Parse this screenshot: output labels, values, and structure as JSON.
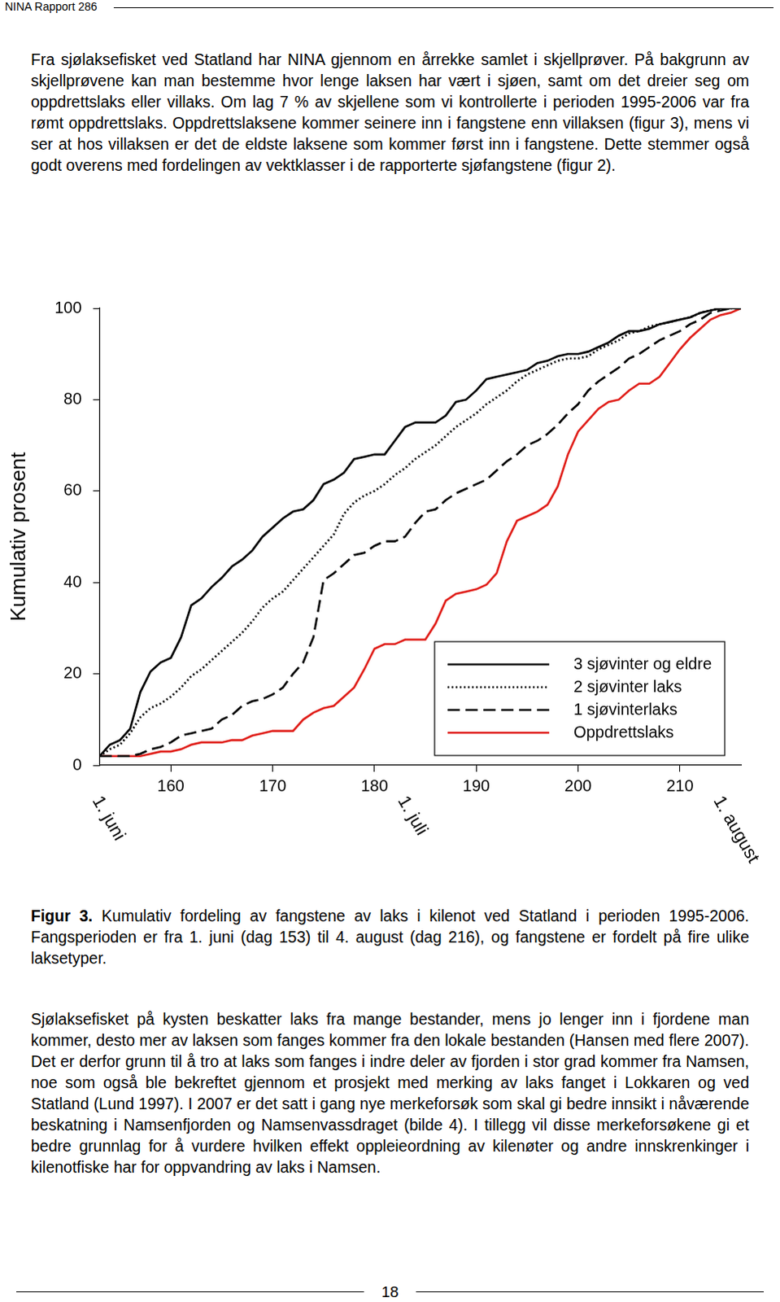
{
  "header": "NINA Rapport 286",
  "paragraphs_before": [
    "Fra sjølaksefisket ved Statland har NINA gjennom en årrekke samlet i skjellprøver. På bakgrunn av skjellprøvene kan man bestemme hvor lenge laksen har vært i sjøen, samt om det dreier seg om oppdrettslaks eller villaks. Om lag 7 % av skjellene som vi kontrollerte i perioden 1995-2006 var fra rømt oppdrettslaks. Oppdrettslaksene kommer seinere inn i fangstene enn villaksen (figur 3), mens vi ser at hos villaksen er det de eldste laksene som kommer først inn i fangstene. Dette stemmer også godt overens med fordelingen av vektklasser i de rapporterte sjøfangstene (figur 2)."
  ],
  "chart_data": {
    "type": "line",
    "y_label": "Kumulativ prosent",
    "x": [
      153,
      154,
      155,
      156,
      157,
      158,
      159,
      160,
      161,
      162,
      163,
      164,
      165,
      166,
      167,
      168,
      169,
      170,
      171,
      172,
      173,
      174,
      175,
      176,
      177,
      178,
      179,
      180,
      181,
      182,
      183,
      184,
      185,
      186,
      187,
      188,
      189,
      190,
      191,
      192,
      193,
      194,
      195,
      196,
      197,
      198,
      199,
      200,
      201,
      202,
      203,
      204,
      205,
      206,
      207,
      208,
      209,
      210,
      211,
      212,
      213,
      214,
      215,
      216
    ],
    "series": [
      {
        "name": "3 sjøvinter og eldre",
        "color": "#000000",
        "line_style": "solid",
        "values": [
          2,
          4.5,
          5.5,
          8,
          16,
          20.5,
          22.5,
          23.5,
          28,
          35,
          36.5,
          39,
          41,
          43.5,
          45,
          47,
          50,
          52,
          54,
          55.5,
          56,
          58,
          61.5,
          62.5,
          64,
          67,
          67.5,
          68,
          68,
          71,
          74,
          75,
          75,
          75,
          76.5,
          79.5,
          80,
          82,
          84.5,
          85,
          85.5,
          86,
          86.5,
          88,
          88.5,
          89.5,
          90,
          90,
          90.5,
          91.5,
          92.5,
          94,
          95,
          95,
          95.5,
          96.5,
          97,
          97.5,
          98,
          99,
          99.5,
          100,
          100,
          100
        ]
      },
      {
        "name": "2 sjøvinter laks",
        "color": "#000000",
        "line_style": "dotted",
        "values": [
          2,
          3.5,
          4.5,
          7,
          10.5,
          12.5,
          13.5,
          15,
          17,
          19.5,
          21,
          23,
          25,
          27,
          29,
          31.5,
          34.5,
          36.5,
          38,
          40.5,
          43,
          45.5,
          48,
          50.5,
          55,
          57.5,
          59,
          60,
          61.5,
          63.5,
          65,
          67,
          68.5,
          70,
          72,
          74,
          75.5,
          77,
          79,
          80.5,
          82,
          84,
          85.5,
          86.5,
          87.5,
          88.5,
          89,
          89,
          89.5,
          91,
          92,
          93,
          94.5,
          95,
          96,
          96.5,
          97,
          97.5,
          98,
          99,
          99.5,
          100,
          100,
          100
        ]
      },
      {
        "name": "1 sjøvinterlaks",
        "color": "#000000",
        "line_style": "dashed",
        "values": [
          2,
          2,
          2,
          2,
          2.5,
          3.5,
          4,
          5,
          6.5,
          7,
          7.5,
          8,
          10,
          11,
          13,
          14,
          14.5,
          15.5,
          17,
          20,
          22.5,
          28,
          40.5,
          42,
          44,
          46,
          46.5,
          48,
          49,
          49,
          50,
          53,
          55.5,
          56,
          58,
          59.5,
          60.5,
          61.5,
          62.5,
          64.5,
          66.5,
          68,
          70,
          71,
          72.5,
          74.5,
          77,
          79,
          82,
          84,
          85.5,
          87,
          89,
          90,
          91.5,
          93,
          94,
          95,
          96.5,
          97.5,
          99,
          99.5,
          100,
          100
        ]
      },
      {
        "name": "Oppdrettslaks",
        "color": "#e0201b",
        "line_style": "solid",
        "values": [
          2,
          2,
          2,
          2,
          2,
          2.5,
          3,
          3,
          3.5,
          4.5,
          5,
          5,
          5,
          5.5,
          5.5,
          6.5,
          7,
          7.5,
          7.5,
          7.5,
          10,
          11.5,
          12.5,
          13,
          15,
          17,
          21,
          25.5,
          26.5,
          26.5,
          27.5,
          27.5,
          27.5,
          31,
          36,
          37.5,
          38,
          38.5,
          39.5,
          42,
          49,
          53.5,
          54.5,
          55.5,
          57,
          61,
          68,
          73,
          75.5,
          78,
          79.5,
          80,
          82,
          83.5,
          83.5,
          85,
          88,
          91,
          93.5,
          95.5,
          97.5,
          98.5,
          99,
          100
        ]
      }
    ],
    "xlim": [
      153,
      216
    ],
    "ylim": [
      0,
      100
    ],
    "xticks": [
      160,
      170,
      180,
      190,
      200,
      210
    ],
    "yticks": [
      0,
      20,
      40,
      60,
      80,
      100
    ],
    "annotations": [
      {
        "x": 153,
        "text": "1. juni"
      },
      {
        "x": 183,
        "text": "1. juli"
      },
      {
        "x": 214,
        "text": "1. august"
      }
    ],
    "legend": "lower right",
    "grid": false
  },
  "caption": {
    "label": "Figur 3.",
    "text": "Kumulativ fordeling av fangstene av laks i kilenot ved Statland i perioden 1995-2006. Fangsperioden er fra 1. juni (dag 153) til 4. august (dag 216), og fangstene er fordelt på fire ulike laksetyper."
  },
  "paragraphs_after": [
    "Sjølaksefisket på kysten beskatter laks fra mange bestander, mens jo lenger inn i fjordene man kommer, desto mer av laksen som fanges kommer fra den lokale bestanden (Hansen med flere 2007). Det er derfor grunn til å tro at laks som fanges i indre deler av fjorden i stor grad kommer fra Namsen, noe som også ble bekreftet gjennom et prosjekt med merking av laks fanget i Lokkaren og ved Statland (Lund 1997). I 2007 er det satt i gang nye merkeforsøk som skal gi bedre innsikt i nåværende beskatning i Namsenfjorden og Namsenvassdraget (bilde 4). I tillegg vil disse merkeforsøkene gi et bedre grunnlag for å vurdere hvilken effekt oppleieordning av kilenøter og andre innskrenkinger i kilenotfiske har for oppvandring av laks i Namsen."
  ],
  "page_number": 18
}
